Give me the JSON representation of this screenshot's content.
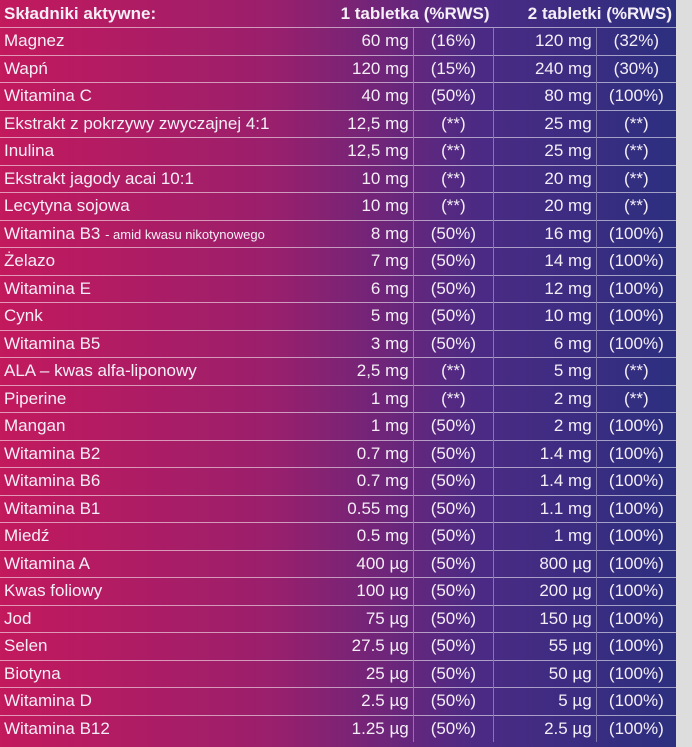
{
  "table": {
    "header": [
      "Składniki aktywne:",
      "1 tabletka (%RWS)",
      "2 tabletki (%RWS)"
    ],
    "rows": [
      {
        "name": "Magnez",
        "a1": "60 mg",
        "p1": "(16%)",
        "a2": "120 mg",
        "p2": "(32%)"
      },
      {
        "name": "Wapń",
        "a1": "120 mg",
        "p1": "(15%)",
        "a2": "240 mg",
        "p2": "(30%)"
      },
      {
        "name": "Witamina C",
        "a1": "40 mg",
        "p1": "(50%)",
        "a2": "80 mg",
        "p2": "(100%)"
      },
      {
        "name": "Ekstrakt z pokrzywy zwyczajnej 4:1",
        "a1": "12,5 mg",
        "p1": "(**)",
        "a2": "25 mg",
        "p2": "(**)"
      },
      {
        "name": "Inulina",
        "a1": "12,5 mg",
        "p1": "(**)",
        "a2": "25 mg",
        "p2": "(**)"
      },
      {
        "name": "Ekstrakt jagody acai 10:1",
        "a1": "10 mg",
        "p1": "(**)",
        "a2": "20 mg",
        "p2": "(**)"
      },
      {
        "name": "Lecytyna sojowa",
        "a1": "10 mg",
        "p1": "(**)",
        "a2": "20 mg",
        "p2": "(**)"
      },
      {
        "name": "Witamina B3",
        "note": "- amid kwasu nikotynowego",
        "a1": "8 mg",
        "p1": "(50%)",
        "a2": "16 mg",
        "p2": "(100%)"
      },
      {
        "name": "Żelazo",
        "a1": "7 mg",
        "p1": "(50%)",
        "a2": "14 mg",
        "p2": "(100%)"
      },
      {
        "name": "Witamina E",
        "a1": "6 mg",
        "p1": "(50%)",
        "a2": "12 mg",
        "p2": "(100%)"
      },
      {
        "name": "Cynk",
        "a1": "5 mg",
        "p1": "(50%)",
        "a2": "10 mg",
        "p2": "(100%)"
      },
      {
        "name": "Witamina B5",
        "a1": "3 mg",
        "p1": "(50%)",
        "a2": "6 mg",
        "p2": "(100%)"
      },
      {
        "name": "ALA – kwas alfa-liponowy",
        "a1": "2,5 mg",
        "p1": "(**)",
        "a2": "5 mg",
        "p2": "(**)"
      },
      {
        "name": "Piperine",
        "a1": "1 mg",
        "p1": "(**)",
        "a2": "2 mg",
        "p2": "(**)"
      },
      {
        "name": "Mangan",
        "a1": "1 mg",
        "p1": "(50%)",
        "a2": "2 mg",
        "p2": "(100%)"
      },
      {
        "name": "Witamina B2",
        "a1": "0.7 mg",
        "p1": "(50%)",
        "a2": "1.4 mg",
        "p2": "(100%)"
      },
      {
        "name": "Witamina B6",
        "a1": "0.7 mg",
        "p1": "(50%)",
        "a2": "1.4 mg",
        "p2": "(100%)"
      },
      {
        "name": "Witamina B1",
        "a1": "0.55 mg",
        "p1": "(50%)",
        "a2": "1.1 mg",
        "p2": "(100%)"
      },
      {
        "name": "Miedź",
        "a1": "0.5 mg",
        "p1": "(50%)",
        "a2": "1 mg",
        "p2": "(100%)"
      },
      {
        "name": "Witamina A",
        "a1": "400 µg",
        "p1": "(50%)",
        "a2": "800 µg",
        "p2": "(100%)"
      },
      {
        "name": "Kwas foliowy",
        "a1": "100 µg",
        "p1": "(50%)",
        "a2": "200 µg",
        "p2": "(100%)"
      },
      {
        "name": "Jod",
        "a1": "75 µg",
        "p1": "(50%)",
        "a2": "150 µg",
        "p2": "(100%)"
      },
      {
        "name": "Selen",
        "a1": "27.5 µg",
        "p1": "(50%)",
        "a2": "55 µg",
        "p2": "(100%)"
      },
      {
        "name": "Biotyna",
        "a1": "25 µg",
        "p1": "(50%)",
        "a2": "50 µg",
        "p2": "(100%)"
      },
      {
        "name": "Witamina D",
        "a1": "2.5 µg",
        "p1": "(50%)",
        "a2": "5 µg",
        "p2": "(100%)"
      },
      {
        "name": "Witamina B12",
        "a1": "1.25 µg",
        "p1": "(50%)",
        "a2": "2.5 µg",
        "p2": "(100%)"
      }
    ]
  }
}
